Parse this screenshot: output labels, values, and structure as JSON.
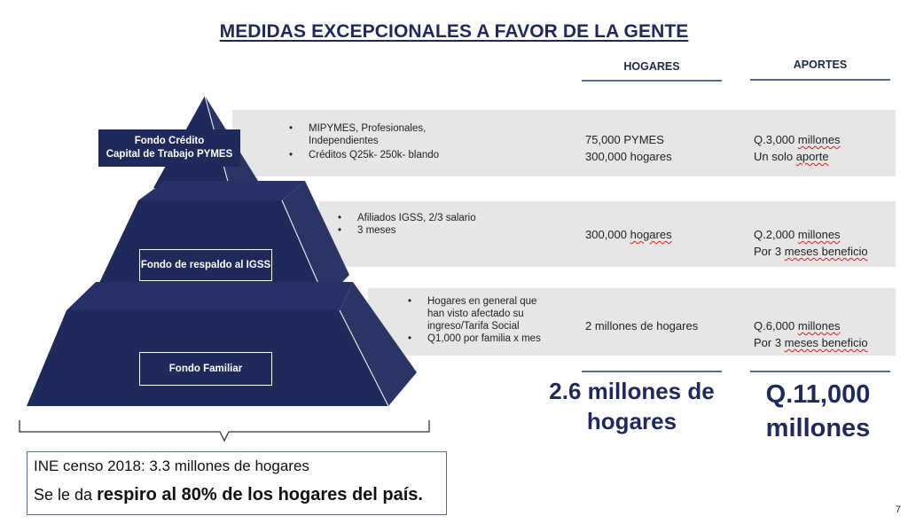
{
  "title": "MEDIDAS EXCEPCIONALES A FAVOR DE LA GENTE",
  "columns": {
    "hogares": "HOGARES",
    "aportes": "APORTES"
  },
  "rows": [
    {
      "label_line1": "Fondo Crédito",
      "label_line2": "Capital de Trabajo PYMES",
      "bullets": [
        "MIPYMES, Profesionales,",
        "Independientes",
        "Créditos Q25k- 250k- blando"
      ],
      "hogares_line1": "75,000 PYMES",
      "hogares_line2": "300,000 hogares",
      "aportes_line1_prefix": "Q.3,000 ",
      "aportes_line1_underlined": "millones",
      "aportes_line2_prefix": "Un solo ",
      "aportes_line2_underlined": "aporte"
    },
    {
      "label": "Fondo de respaldo al IGSS",
      "bullets": [
        "Afiliados IGSS, 2/3 salario",
        "3 meses"
      ],
      "hogares_prefix": "300,000 ",
      "hogares_underlined": "hogares",
      "aportes_line1_prefix": "Q.2,000 ",
      "aportes_line1_underlined": "millones",
      "aportes_line2_prefix": "Por 3 ",
      "aportes_line2_underlined": "meses beneficio"
    },
    {
      "label": "Fondo Familiar",
      "bullets": [
        "Hogares en general que",
        "han visto afectado su",
        "ingreso/Tarifa Social",
        "Q1,000 por familia x mes"
      ],
      "hogares": "2 millones de hogares",
      "aportes_line1_prefix": "Q.6,000 ",
      "aportes_line1_underlined": "millones",
      "aportes_line2_prefix": "Por 3 ",
      "aportes_line2_underlined": "meses beneficio"
    }
  ],
  "totals": {
    "hogares_line1": "2.6 millones de",
    "hogares_line2": "hogares",
    "aportes_line1": "Q.11,000",
    "aportes_line2": "millones"
  },
  "note": {
    "line1": "INE censo 2018: 3.3 millones de hogares",
    "line2_prefix": "Se le da ",
    "line2_bold": "respiro al 80% de los hogares del país."
  },
  "page_number": "7",
  "colors": {
    "navy": "#1f2a5a",
    "band": "#e6e6e6",
    "spellcheck": "#d02020"
  }
}
